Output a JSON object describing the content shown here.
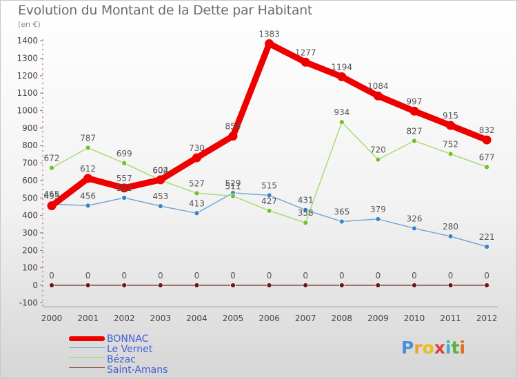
{
  "header": {
    "title": "Evolution du Montant de la Dette par Habitant",
    "subtitle": "(en €)"
  },
  "logo": {
    "text": "Proxiti",
    "letters": [
      "P",
      "r",
      "o",
      "x",
      "i",
      "t",
      "i"
    ],
    "letter_colors": [
      "#4a90d9",
      "#f0a030",
      "#e8c020",
      "#e04040",
      "#3ab0c8",
      "#5ab040",
      "#e07020"
    ]
  },
  "chart_data": {
    "type": "line",
    "title": "Evolution du Montant de la Dette par Habitant",
    "subtitle": "(en €)",
    "xlabel": "",
    "ylabel": "",
    "x": [
      "2000",
      "2001",
      "2002",
      "2003",
      "2004",
      "2005",
      "2006",
      "2007",
      "2008",
      "2009",
      "2010",
      "2011",
      "2012"
    ],
    "ylim": [
      -100,
      1400
    ],
    "yticks": [
      -100,
      0,
      100,
      200,
      300,
      400,
      500,
      600,
      700,
      800,
      900,
      1000,
      1100,
      1200,
      1300,
      1400
    ],
    "grid": false,
    "legend_position": "bottom-left",
    "series": [
      {
        "name": "BONNAC",
        "color": "#ee0000",
        "point_color": "#ee0000",
        "values": [
          455,
          612,
          557,
          604,
          730,
          854,
          1383,
          1277,
          1194,
          1084,
          997,
          915,
          832
        ]
      },
      {
        "name": "Le Vernet",
        "color": "#7aa6d6",
        "point_color": "#3a85c8",
        "values": [
          465,
          456,
          501,
          453,
          413,
          529,
          515,
          431,
          365,
          379,
          326,
          280,
          221
        ]
      },
      {
        "name": "Bézac",
        "color": "#a6dc78",
        "point_color": "#72c02c",
        "values": [
          672,
          787,
          699,
          602,
          527,
          511,
          427,
          358,
          934,
          720,
          827,
          752,
          677
        ]
      },
      {
        "name": "Saint-Amans",
        "color": "#8a4a4a",
        "point_color": "#6a1a1a",
        "values": [
          0,
          0,
          0,
          0,
          0,
          0,
          0,
          0,
          0,
          0,
          0,
          0,
          0
        ]
      }
    ]
  }
}
